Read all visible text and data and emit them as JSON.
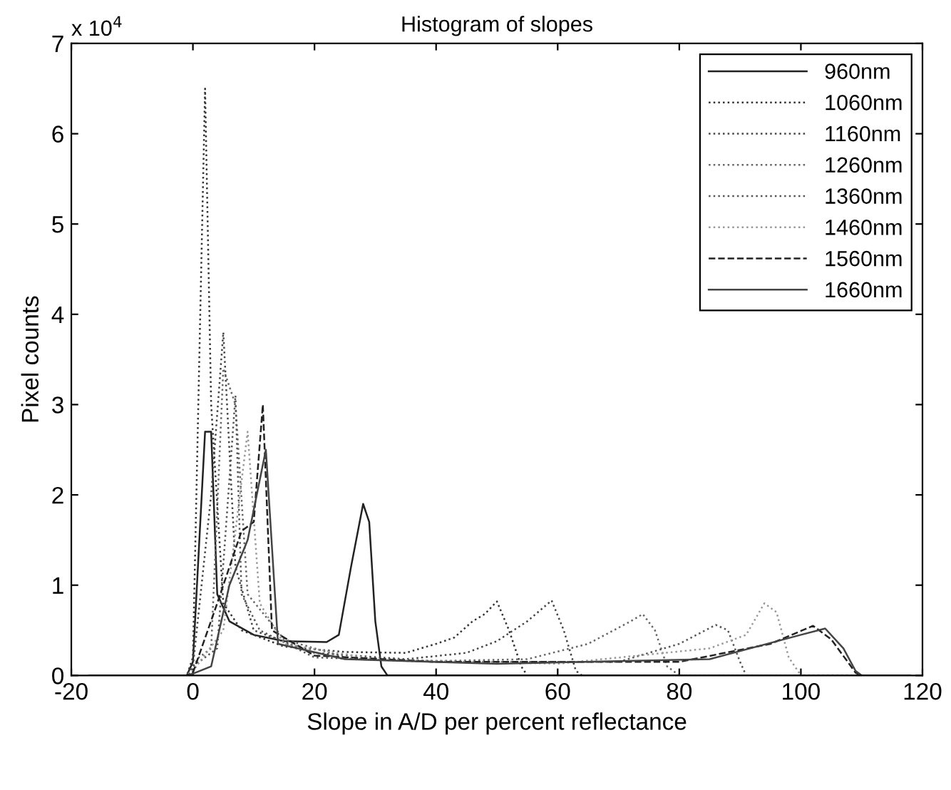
{
  "chart_data": {
    "type": "line",
    "title": "Histogram of slopes",
    "xlabel": "Slope in A/D per percent reflectance",
    "ylabel": "Pixel counts",
    "annotations": [
      "x 10$^{4}$"
    ],
    "xlim": [
      -20,
      120
    ],
    "xticks": [
      -20,
      0,
      20,
      40,
      60,
      80,
      100,
      120
    ],
    "ylim": [
      0,
      7
    ],
    "yticks": [
      0,
      1,
      2,
      3,
      4,
      5,
      6,
      7
    ],
    "grid": false,
    "legend": "top right",
    "series": [
      {
        "name": "960nm",
        "color": "#222222",
        "line_style": "solid",
        "x": [
          -17,
          -1,
          0,
          2,
          3,
          4,
          6,
          10,
          15,
          22,
          24,
          26,
          28,
          29,
          30,
          31,
          32,
          118
        ],
        "values": [
          0,
          0,
          0.15,
          2.7,
          2.7,
          0.9,
          0.6,
          0.45,
          0.38,
          0.37,
          0.45,
          1.2,
          1.9,
          1.7,
          0.6,
          0.1,
          0,
          0
        ]
      },
      {
        "name": "1060nm",
        "color": "#333333",
        "line_style": "dotted",
        "x": [
          -17,
          -1,
          0,
          2,
          3,
          5,
          8,
          15,
          25,
          35,
          40,
          43,
          46,
          48,
          50,
          52,
          54,
          55,
          118
        ],
        "values": [
          0,
          0,
          0.2,
          6.5,
          3.0,
          0.8,
          0.5,
          0.32,
          0.26,
          0.25,
          0.35,
          0.42,
          0.6,
          0.68,
          0.82,
          0.5,
          0.1,
          0,
          0
        ]
      },
      {
        "name": "1160nm",
        "color": "#444444",
        "line_style": "dotted",
        "x": [
          -17,
          -1,
          0,
          3,
          5,
          7,
          10,
          20,
          35,
          45,
          50,
          55,
          59,
          61,
          63,
          64,
          118
        ],
        "values": [
          0,
          0,
          0.1,
          2.0,
          3.8,
          1.2,
          0.5,
          0.25,
          0.18,
          0.25,
          0.38,
          0.6,
          0.83,
          0.5,
          0.05,
          0,
          0
        ]
      },
      {
        "name": "1260nm",
        "color": "#666666",
        "line_style": "dotted",
        "x": [
          -17,
          -1,
          1,
          3,
          5,
          7,
          9,
          15,
          25,
          40,
          55,
          65,
          72,
          74,
          76,
          78,
          80,
          118
        ],
        "values": [
          0,
          0,
          0.2,
          0.3,
          3.4,
          3.0,
          0.9,
          0.4,
          0.2,
          0.16,
          0.18,
          0.35,
          0.6,
          0.68,
          0.5,
          0.1,
          0,
          0
        ]
      },
      {
        "name": "1360nm",
        "color": "#555555",
        "line_style": "dotted",
        "x": [
          -17,
          -1,
          0,
          4,
          7,
          8,
          11,
          20,
          40,
          70,
          80,
          86,
          88,
          90,
          91,
          118
        ],
        "values": [
          0,
          0,
          0.1,
          0.3,
          3.1,
          0.9,
          0.5,
          0.2,
          0.15,
          0.15,
          0.35,
          0.56,
          0.5,
          0.15,
          0,
          0
        ]
      },
      {
        "name": "1460nm",
        "color": "#999999",
        "line_style": "dotted",
        "x": [
          -17,
          -1,
          0,
          5,
          9,
          11,
          15,
          30,
          60,
          85,
          91,
          94,
          96,
          98,
          100,
          118
        ],
        "values": [
          0,
          0,
          0.05,
          0.5,
          2.7,
          0.8,
          0.35,
          0.18,
          0.13,
          0.3,
          0.45,
          0.8,
          0.7,
          0.2,
          0,
          0
        ]
      },
      {
        "name": "1560nm",
        "color": "#222222",
        "line_style": "dashed",
        "x": [
          -17,
          -1,
          0,
          4,
          8,
          10,
          11.5,
          13,
          20,
          40,
          80,
          95,
          102,
          105,
          109,
          110,
          118
        ],
        "values": [
          0,
          0,
          0.03,
          0.8,
          1.6,
          1.7,
          3.0,
          0.5,
          0.22,
          0.15,
          0.15,
          0.35,
          0.55,
          0.4,
          0.03,
          0,
          0
        ]
      },
      {
        "name": "1660nm",
        "color": "#444444",
        "line_style": "solid",
        "x": [
          -17,
          -1,
          0,
          3,
          6,
          9,
          12,
          14,
          25,
          50,
          85,
          100,
          104,
          107,
          109,
          110,
          118
        ],
        "values": [
          0,
          0,
          0.02,
          0.1,
          1.0,
          1.5,
          2.5,
          0.35,
          0.18,
          0.13,
          0.18,
          0.45,
          0.52,
          0.3,
          0.05,
          0,
          0
        ]
      }
    ]
  }
}
